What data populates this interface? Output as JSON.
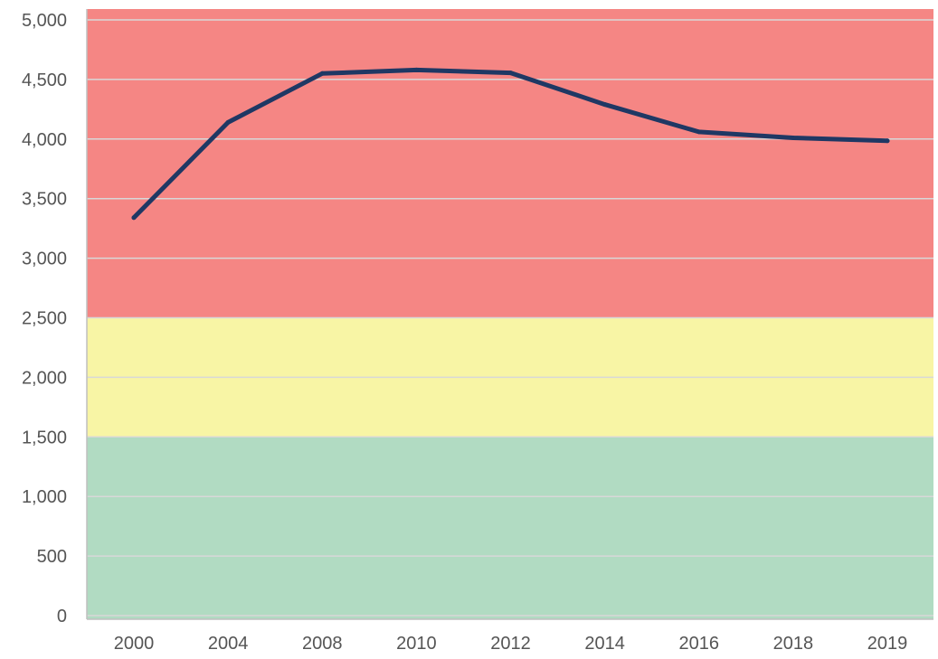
{
  "chart_data": {
    "type": "line",
    "title": "",
    "xlabel": "",
    "ylabel": "",
    "categories": [
      "2000",
      "2004",
      "2008",
      "2010",
      "2012",
      "2014",
      "2016",
      "2018",
      "2019"
    ],
    "series": [
      {
        "values": [
          3340,
          4140,
          4550,
          4580,
          4555,
          4290,
          4060,
          4010,
          3985
        ],
        "color": "#1f3864"
      }
    ],
    "ylim": [
      0,
      5000
    ],
    "yticks": [
      0,
      500,
      1000,
      1500,
      2000,
      2500,
      3000,
      3500,
      4000,
      4500,
      5000
    ],
    "ytick_labels": [
      "0",
      "500",
      "1,000",
      "1,500",
      "2,000",
      "2,500",
      "3,000",
      "3,500",
      "4,000",
      "4,500",
      "5,000"
    ],
    "bands": [
      {
        "from": 0,
        "to": 1500,
        "color": "#b1dbc2"
      },
      {
        "from": 1500,
        "to": 2500,
        "color": "#f8f5a5"
      },
      {
        "from": 2500,
        "to": 5000,
        "color": "#f58684"
      }
    ],
    "grid": true,
    "legend": "none"
  }
}
